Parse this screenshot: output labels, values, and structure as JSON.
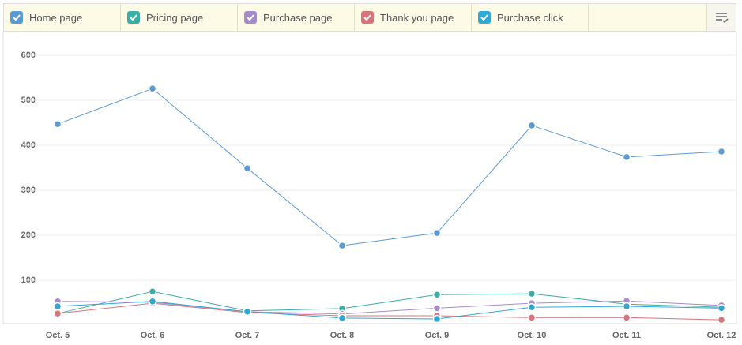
{
  "chart_data": {
    "type": "line",
    "categories": [
      "Oct. 5",
      "Oct. 6",
      "Oct. 7",
      "Oct. 8",
      "Oct. 9",
      "Oct. 10",
      "Oct. 11",
      "Oct. 12"
    ],
    "series": [
      {
        "name": "Home page",
        "color": "#5b9bd5",
        "values": [
          447,
          526,
          349,
          177,
          205,
          444,
          374,
          386
        ]
      },
      {
        "name": "Pricing page",
        "color": "#3ab0a5",
        "values": [
          26,
          75,
          32,
          37,
          68,
          70,
          47,
          40
        ]
      },
      {
        "name": "Purchase page",
        "color": "#a58bc9",
        "values": [
          53,
          51,
          30,
          25,
          38,
          49,
          54,
          44
        ]
      },
      {
        "name": "Thank you page",
        "color": "#d9747a",
        "values": [
          26,
          49,
          28,
          21,
          21,
          17,
          17,
          12
        ]
      },
      {
        "name": "Purchase click",
        "color": "#2ea8d6",
        "values": [
          42,
          53,
          30,
          16,
          14,
          40,
          42,
          38
        ]
      }
    ],
    "ylim": [
      0,
      600
    ],
    "yticks": [
      100,
      200,
      300,
      400,
      500,
      600
    ],
    "grid": true
  }
}
